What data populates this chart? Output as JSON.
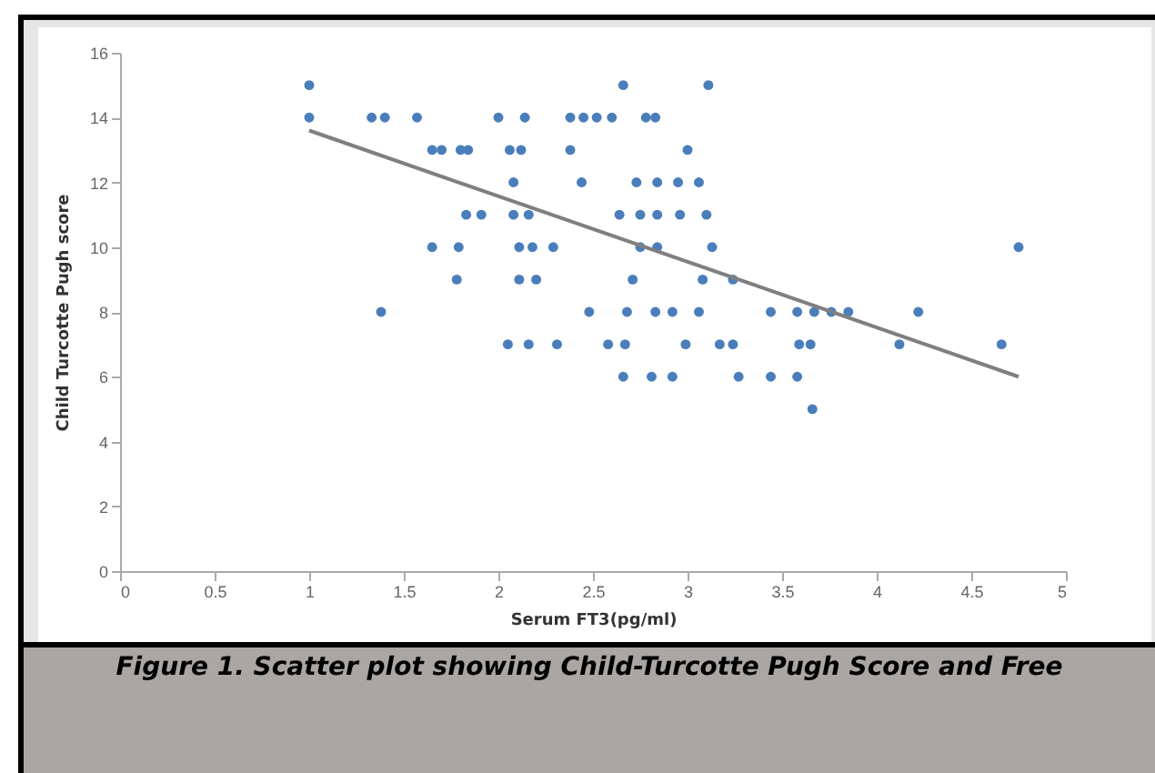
{
  "chart_data": {
    "type": "scatter",
    "title": "Figure 1. Scatter plot showing Child-Turcotte Pugh Score and Free",
    "xlabel": "Serum FT3(pg/ml)",
    "ylabel": "Child Turcotte Pugh score",
    "xlim": [
      0,
      5
    ],
    "ylim": [
      0,
      16
    ],
    "xticks": [
      0,
      0.5,
      1,
      1.5,
      2,
      2.5,
      3,
      3.5,
      4,
      4.5,
      5
    ],
    "yticks": [
      0,
      2,
      4,
      6,
      8,
      10,
      12,
      14,
      16
    ],
    "grid": false,
    "series": [
      {
        "type": "scatter",
        "marker": "circle",
        "color": "#4a7ebb",
        "x": [
          1.0,
          2.66,
          3.11,
          1.0,
          1.33,
          1.4,
          1.57,
          2.0,
          2.14,
          2.38,
          2.45,
          2.52,
          2.6,
          2.78,
          2.83,
          1.65,
          1.7,
          1.8,
          1.84,
          2.06,
          2.12,
          2.38,
          3.0,
          2.08,
          2.44,
          2.73,
          2.84,
          2.95,
          3.06,
          1.83,
          1.91,
          2.08,
          2.16,
          2.64,
          2.75,
          2.84,
          2.96,
          3.1,
          1.65,
          1.79,
          2.11,
          2.18,
          2.29,
          2.75,
          2.84,
          3.13,
          4.75,
          1.78,
          2.11,
          2.2,
          2.71,
          3.08,
          3.24,
          1.38,
          2.48,
          2.68,
          2.83,
          2.92,
          3.06,
          3.44,
          3.58,
          3.67,
          3.76,
          3.85,
          4.22,
          2.05,
          2.16,
          2.31,
          2.58,
          2.67,
          2.99,
          3.17,
          3.24,
          3.59,
          3.65,
          4.12,
          4.66,
          2.66,
          2.81,
          2.92,
          3.27,
          3.44,
          3.58,
          3.66
        ],
        "values": [
          15,
          15,
          15,
          14,
          14,
          14,
          14,
          14,
          14,
          14,
          14,
          14,
          14,
          14,
          14,
          13,
          13,
          13,
          13,
          13,
          13,
          13,
          13,
          12,
          12,
          12,
          12,
          12,
          12,
          11,
          11,
          11,
          11,
          11,
          11,
          11,
          11,
          11,
          10,
          10,
          10,
          10,
          10,
          10,
          10,
          10,
          10,
          9,
          9,
          9,
          9,
          9,
          9,
          8,
          8,
          8,
          8,
          8,
          8,
          8,
          8,
          8,
          8,
          8,
          8,
          7,
          7,
          7,
          7,
          7,
          7,
          7,
          7,
          7,
          7,
          7,
          7,
          6,
          6,
          6,
          6,
          6,
          6,
          5
        ]
      },
      {
        "type": "line",
        "color": "#7f7f7f",
        "x": [
          1.0,
          4.75
        ],
        "values": [
          13.6,
          6.0
        ]
      }
    ]
  }
}
